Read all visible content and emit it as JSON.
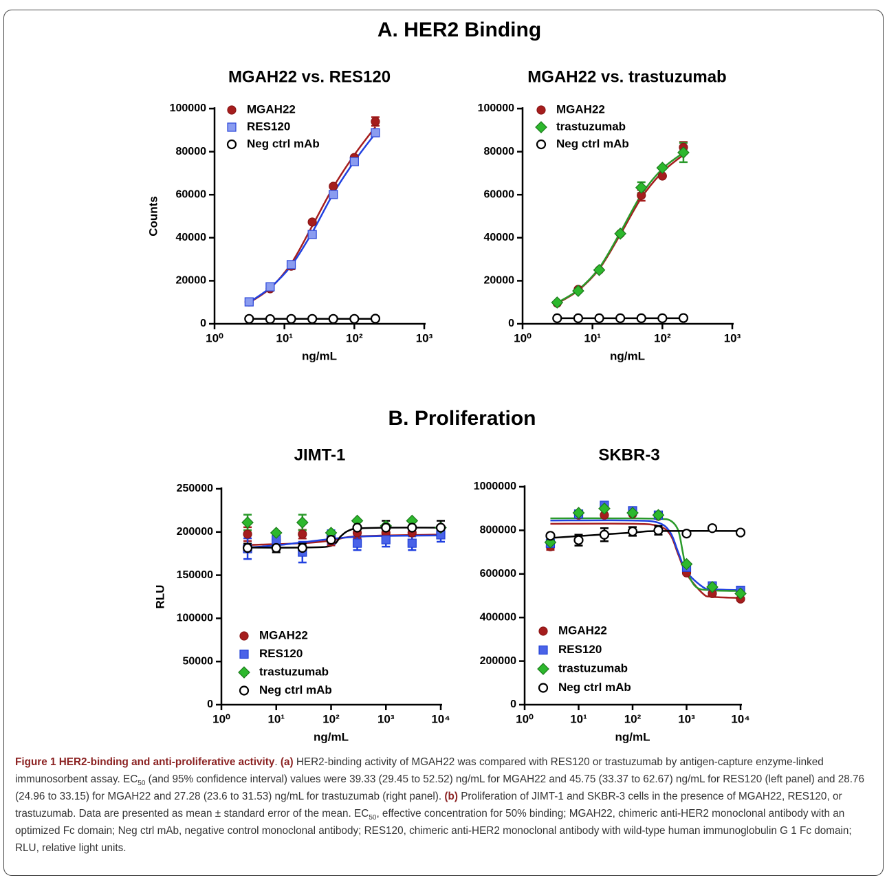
{
  "headings": [
    "A. HER2 Binding",
    "B. Proliferation"
  ],
  "chart_data": [
    {
      "type": "scatter",
      "title": "MGAH22 vs. RES120",
      "xlabel": "ng/mL",
      "ylabel": "Counts",
      "xscale": "log",
      "xlim": [
        1,
        1000
      ],
      "xticks": [
        {
          "value": 1,
          "label": "10⁰"
        },
        {
          "value": 10,
          "label": "10¹"
        },
        {
          "value": 100,
          "label": "10²"
        },
        {
          "value": 1000,
          "label": "10³"
        }
      ],
      "ylim": [
        0,
        100000
      ],
      "yticks": [
        0,
        20000,
        40000,
        60000,
        80000,
        100000
      ],
      "legend": "upper left",
      "x": [
        3.125,
        6.25,
        12.5,
        25,
        50,
        100,
        200
      ],
      "series": [
        {
          "name": "MGAH22",
          "marker": "circle",
          "color": "#a51d1d",
          "edge": "#8a1515",
          "line_color": "#a51d1d",
          "values": [
            10200,
            16300,
            26800,
            47300,
            63900,
            77300,
            94000
          ],
          "errors": [
            null,
            null,
            1500,
            null,
            null,
            null,
            2000
          ],
          "fit": {
            "x": [
              3.125,
              6.25,
              12.5,
              25,
              50,
              100,
              200
            ],
            "y": [
              9800,
              16500,
              28000,
              45500,
              63500,
              78500,
              91500
            ]
          }
        },
        {
          "name": "RES120",
          "marker": "square",
          "color": "#8a9cf0",
          "edge": "#2a45d8",
          "line_color": "#2040e0",
          "values": [
            10200,
            17200,
            27500,
            41500,
            60100,
            75400,
            88800
          ],
          "fit": {
            "x": [
              3.125,
              6.25,
              12.5,
              25,
              50,
              100,
              200
            ],
            "y": [
              10000,
              16800,
              27000,
              42500,
              60500,
              75500,
              88500
            ]
          }
        },
        {
          "name": "Neg ctrl mAb",
          "marker": "circle",
          "color": "#ffffff",
          "edge": "#000000",
          "line_color": "#000000",
          "values": [
            2300,
            2200,
            2300,
            2300,
            2300,
            2300,
            2400
          ],
          "fit": {
            "x": [
              3.125,
              200
            ],
            "y": [
              2300,
              2300
            ]
          }
        }
      ]
    },
    {
      "type": "scatter",
      "title": "MGAH22 vs. trastuzumab",
      "xlabel": "ng/mL",
      "xscale": "log",
      "xlim": [
        1,
        1000
      ],
      "xticks": [
        {
          "value": 1,
          "label": "10⁰"
        },
        {
          "value": 10,
          "label": "10¹"
        },
        {
          "value": 100,
          "label": "10²"
        },
        {
          "value": 1000,
          "label": "10³"
        }
      ],
      "ylim": [
        0,
        100000
      ],
      "yticks": [
        0,
        20000,
        40000,
        60000,
        80000,
        100000
      ],
      "legend": "upper left",
      "x": [
        3.125,
        6.25,
        12.5,
        25,
        50,
        100,
        200
      ],
      "series": [
        {
          "name": "MGAH22",
          "marker": "circle",
          "color": "#a51d1d",
          "edge": "#8a1515",
          "line_color": "#a51d1d",
          "values": [
            9600,
            16000,
            25000,
            41900,
            59700,
            68700,
            82000
          ],
          "errors": [
            null,
            null,
            null,
            null,
            2500,
            null,
            2500
          ],
          "fit": {
            "x": [
              3.125,
              6.25,
              12.5,
              25,
              50,
              100,
              200
            ],
            "y": [
              9500,
              15500,
              25500,
              41500,
              58500,
              70500,
              78500
            ]
          }
        },
        {
          "name": "trastuzumab",
          "marker": "diamond",
          "color": "#2db82d",
          "edge": "#1a7a1a",
          "line_color": "#2a9a2a",
          "values": [
            9900,
            15300,
            25000,
            41900,
            63300,
            72500,
            79600
          ],
          "errors": [
            null,
            null,
            null,
            null,
            2500,
            null,
            4500
          ],
          "fit": {
            "x": [
              3.125,
              6.25,
              12.5,
              25,
              50,
              100,
              200
            ],
            "y": [
              9800,
              15800,
              26000,
              42500,
              60000,
              72000,
              79500
            ]
          }
        },
        {
          "name": "Neg ctrl mAb",
          "marker": "circle",
          "color": "#ffffff",
          "edge": "#000000",
          "line_color": "#000000",
          "values": [
            2600,
            2600,
            2600,
            2600,
            2600,
            2600,
            2700
          ],
          "fit": {
            "x": [
              3.125,
              200
            ],
            "y": [
              2600,
              2600
            ]
          }
        }
      ]
    },
    {
      "type": "scatter",
      "title": "JIMT-1",
      "xlabel": "ng/mL",
      "ylabel": "RLU",
      "xscale": "log",
      "xlim": [
        1,
        10000
      ],
      "xticks": [
        {
          "value": 1,
          "label": "10⁰"
        },
        {
          "value": 10,
          "label": "10¹"
        },
        {
          "value": 100,
          "label": "10²"
        },
        {
          "value": 1000,
          "label": "10³"
        },
        {
          "value": 10000,
          "label": "10⁴"
        }
      ],
      "ylim": [
        0,
        250000
      ],
      "yticks": [
        0,
        50000,
        100000,
        150000,
        200000,
        250000
      ],
      "legend": "lower left",
      "x": [
        3,
        10,
        30,
        100,
        300,
        1000,
        3000,
        10000
      ],
      "series": [
        {
          "name": "MGAH22",
          "marker": "circle",
          "color": "#a51d1d",
          "edge": "#8a1515",
          "line_color": "#a51d1d",
          "values": [
            197500,
            191000,
            197500,
            189500,
            199000,
            199000,
            199000,
            199000
          ],
          "errors": [
            8000,
            6000,
            5000,
            5000,
            6000,
            8000,
            8000,
            5000
          ],
          "fit": {
            "x": [
              3,
              30,
              100,
              300,
              10000
            ],
            "y": [
              185000,
              187000,
              190000,
              195000,
              197000
            ]
          }
        },
        {
          "name": "RES120",
          "marker": "square",
          "color": "#4a63e8",
          "edge": "#1f3fd6",
          "line_color": "#2040e0",
          "values": [
            180700,
            191000,
            176700,
            194000,
            187000,
            191000,
            187000,
            196700
          ],
          "errors": [
            12000,
            6000,
            12000,
            8000,
            8000,
            8000,
            8000,
            8000
          ],
          "fit": {
            "x": [
              3,
              10,
              30,
              100,
              300,
              1000,
              10000
            ],
            "y": [
              182000,
              184500,
              188000,
              192000,
              194500,
              195500,
              196000
            ]
          }
        },
        {
          "name": "trastuzumab",
          "marker": "diamond",
          "color": "#2db82d",
          "edge": "#1a7a1a",
          "line_color": "#2a9a2a",
          "values": [
            211000,
            199000,
            211000,
            199000,
            213000,
            207000,
            213000,
            205000
          ],
          "errors": [
            9000,
            null,
            9000,
            null,
            null,
            null,
            null,
            null
          ]
        },
        {
          "name": "Neg ctrl mAb",
          "marker": "circle",
          "color": "#ffffff",
          "edge": "#000000",
          "line_color": "#000000",
          "values": [
            181500,
            181500,
            181500,
            191000,
            205000,
            205000,
            205000,
            205000
          ],
          "errors": [
            5000,
            5000,
            5000,
            null,
            null,
            8000,
            null,
            8000
          ],
          "fit": {
            "x": [
              3,
              30,
              100,
              150,
              200,
              300,
              1000,
              10000
            ],
            "y": [
              182000,
              182000,
              184000,
              195000,
              201000,
              204000,
              205000,
              205000
            ]
          }
        }
      ]
    },
    {
      "type": "scatter",
      "title": "SKBR-3",
      "xlabel": "ng/mL",
      "xscale": "log",
      "xlim": [
        1,
        10000
      ],
      "xticks": [
        {
          "value": 1,
          "label": "10⁰"
        },
        {
          "value": 10,
          "label": "10¹"
        },
        {
          "value": 100,
          "label": "10²"
        },
        {
          "value": 1000,
          "label": "10³"
        },
        {
          "value": 10000,
          "label": "10⁴"
        }
      ],
      "ylim": [
        0,
        1000000
      ],
      "yticks": [
        0,
        200000,
        400000,
        600000,
        800000,
        1000000
      ],
      "legend": "lower left",
      "x": [
        3,
        10,
        30,
        100,
        300,
        1000,
        3000,
        10000
      ],
      "series": [
        {
          "name": "MGAH22",
          "marker": "circle",
          "color": "#a51d1d",
          "edge": "#8a1515",
          "line_color": "#a51d1d",
          "values": [
            725000,
            870000,
            870000,
            875000,
            865000,
            605000,
            510000,
            485000
          ],
          "errors": [
            15000,
            null,
            null,
            null,
            null,
            null,
            null,
            null
          ],
          "fit": {
            "x": [
              3,
              100,
              300,
              500,
              700,
              1000,
              2000,
              3000,
              10000
            ],
            "y": [
              830000,
              830000,
              820000,
              780000,
              690000,
              600000,
              510000,
              495000,
              490000
            ]
          }
        },
        {
          "name": "RES120",
          "marker": "square",
          "color": "#4a63e8",
          "edge": "#1f3fd6",
          "line_color": "#2040e0",
          "values": [
            740000,
            875000,
            915000,
            890000,
            870000,
            630000,
            545000,
            525000
          ],
          "fit": {
            "x": [
              3,
              100,
              300,
              500,
              700,
              1000,
              2000,
              3000,
              10000
            ],
            "y": [
              845000,
              845000,
              835000,
              790000,
              700000,
              610000,
              540000,
              530000,
              525000
            ]
          }
        },
        {
          "name": "trastuzumab",
          "marker": "diamond",
          "color": "#2db82d",
          "edge": "#1a7a1a",
          "line_color": "#2a9a2a",
          "values": [
            745000,
            880000,
            900000,
            880000,
            870000,
            645000,
            540000,
            510000
          ],
          "fit": {
            "x": [
              3,
              100,
              300,
              500,
              700,
              850,
              1000,
              1500,
              3000,
              10000
            ],
            "y": [
              855000,
              855000,
              853000,
              845000,
              800000,
              700000,
              620000,
              540000,
              525000,
              522000
            ]
          }
        },
        {
          "name": "Neg ctrl mAb",
          "marker": "circle",
          "color": "#ffffff",
          "edge": "#000000",
          "line_color": "#000000",
          "values": [
            775000,
            755000,
            780000,
            795000,
            800000,
            785000,
            810000,
            790000
          ],
          "errors": [
            10000,
            25000,
            30000,
            20000,
            20000,
            null,
            null,
            null
          ],
          "fit": {
            "x": [
              3,
              100,
              300,
              10000
            ],
            "y": [
              765000,
              790000,
              797000,
              797000
            ]
          }
        }
      ]
    }
  ],
  "caption": {
    "runs": [
      {
        "text": "Figure 1 HER2-binding and anti-proliferative activity",
        "style": "bold"
      },
      {
        "text": ". "
      },
      {
        "text": "(a)",
        "style": "bold"
      },
      {
        "text": " HER2-binding activity of MGAH22 was compared with RES120 or trastuzumab by antigen-capture enzyme-linked immunosorbent assay. EC"
      },
      {
        "text": "50",
        "style": "sub"
      },
      {
        "text": " (and 95% confidence interval) values were 39.33 (29.45 to 52.52) ng/mL for MGAH22 and 45.75 (33.37 to 62.67) ng/mL for RES120 (left panel) and 28.76 (24.96 to 33.15) for MGAH22 and 27.28 (23.6 to 31.53) ng/mL for trastuzumab (right panel). "
      },
      {
        "text": "(b)",
        "style": "bold"
      },
      {
        "text": " Proliferation of JIMT-1 and SKBR-3 cells in the presence of MGAH22, RES120, or trastuzumab. Data are presented as mean ± standard error of the mean. EC"
      },
      {
        "text": "50",
        "style": "sub"
      },
      {
        "text": ", effective concentration for 50% binding; MGAH22, chimeric anti-HER2 monoclonal antibody with an optimized Fc domain; Neg ctrl mAb, negative control monoclonal antibody; RES120, chimeric anti-HER2 monoclonal antibody with wild-type human immunoglobulin G 1 Fc domain; RLU, relative light units."
      }
    ]
  }
}
